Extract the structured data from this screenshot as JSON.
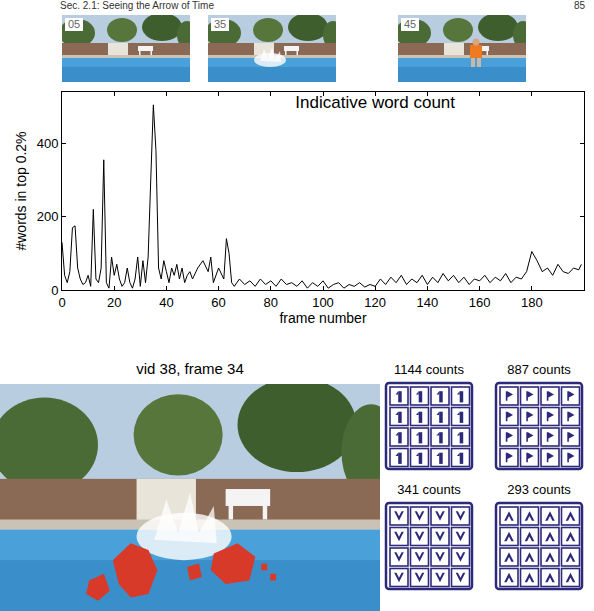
{
  "header": {
    "section": "Sec. 2.1: Seeing the Arrow of Time",
    "page": "85"
  },
  "thumbnails": [
    "05",
    "35",
    "45"
  ],
  "chart_data": {
    "type": "line",
    "title": "Indicative word count",
    "x_label": "frame number",
    "y_label": "#words in top 0.2%",
    "x": [
      0,
      1,
      2,
      3,
      4,
      5,
      6,
      7,
      8,
      9,
      10,
      11,
      12,
      13,
      14,
      15,
      16,
      17,
      18,
      19,
      20,
      21,
      22,
      23,
      24,
      25,
      26,
      27,
      28,
      29,
      30,
      31,
      32,
      33,
      34,
      35,
      36,
      37,
      38,
      39,
      40,
      41,
      42,
      43,
      44,
      45,
      46,
      47,
      48,
      49,
      50,
      52,
      54,
      56,
      57,
      58,
      60,
      62,
      63,
      64,
      65,
      66,
      68,
      70,
      72,
      74,
      76,
      78,
      80,
      82,
      84,
      86,
      88,
      90,
      92,
      94,
      96,
      98,
      100,
      102,
      104,
      106,
      108,
      110,
      112,
      114,
      116,
      118,
      120,
      122,
      124,
      126,
      128,
      130,
      132,
      134,
      136,
      138,
      140,
      142,
      144,
      146,
      148,
      150,
      152,
      154,
      156,
      158,
      160,
      162,
      164,
      166,
      168,
      170,
      172,
      174,
      176,
      178,
      180,
      182,
      184,
      186,
      188,
      190,
      192,
      194,
      196,
      198,
      199
    ],
    "values": [
      130,
      40,
      20,
      50,
      170,
      175,
      60,
      30,
      15,
      20,
      40,
      10,
      220,
      30,
      20,
      60,
      355,
      20,
      5,
      90,
      40,
      70,
      30,
      10,
      20,
      60,
      20,
      5,
      30,
      90,
      10,
      80,
      20,
      90,
      300,
      505,
      380,
      60,
      30,
      80,
      50,
      20,
      60,
      40,
      70,
      30,
      60,
      20,
      40,
      50,
      30,
      60,
      80,
      50,
      90,
      20,
      60,
      30,
      140,
      100,
      20,
      10,
      30,
      15,
      25,
      10,
      30,
      15,
      25,
      10,
      30,
      15,
      20,
      10,
      25,
      5,
      20,
      10,
      25,
      5,
      15,
      20,
      5,
      15,
      10,
      20,
      8,
      15,
      10,
      30,
      15,
      35,
      20,
      40,
      15,
      30,
      20,
      40,
      15,
      35,
      20,
      45,
      25,
      40,
      20,
      35,
      15,
      30,
      25,
      40,
      20,
      35,
      25,
      45,
      20,
      35,
      30,
      50,
      105,
      80,
      50,
      60,
      40,
      70,
      50,
      45,
      60,
      55,
      70
    ],
    "color": "#000000",
    "xlim": [
      0,
      200
    ],
    "xticks": [
      0,
      20,
      40,
      60,
      80,
      100,
      120,
      140,
      160,
      180
    ],
    "ylim": [
      0,
      540
    ],
    "yticks": [
      0,
      200,
      400
    ],
    "grid": false
  },
  "frame_view": {
    "title": "vid 38, frame 34"
  },
  "word_panels": [
    "1144 counts",
    "887 counts",
    "341 counts",
    "293 counts"
  ]
}
